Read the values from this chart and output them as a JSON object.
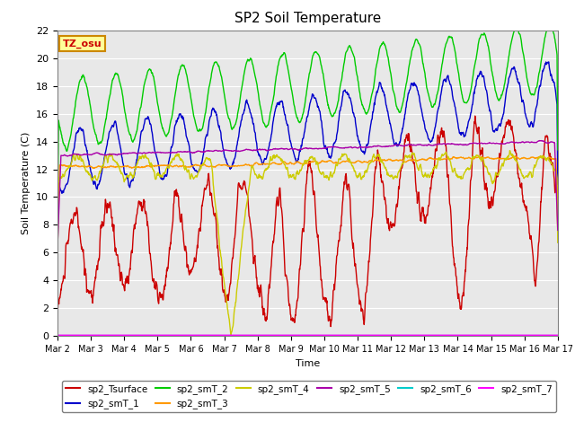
{
  "title": "SP2 Soil Temperature",
  "xlabel": "Time",
  "ylabel": "Soil Temperature (C)",
  "ylim": [
    0,
    22
  ],
  "annotation_text": "TZ_osu",
  "annotation_color": "#cc0000",
  "annotation_bg": "#ffff99",
  "annotation_border": "#cc8800",
  "plot_bg": "#e8e8e8",
  "grid_color": "white",
  "colors": {
    "sp2_Tsurface": "#cc0000",
    "sp2_smT_1": "#0000cc",
    "sp2_smT_2": "#00cc00",
    "sp2_smT_3": "#ff9900",
    "sp2_smT_4": "#cccc00",
    "sp2_smT_5": "#aa00aa",
    "sp2_smT_6": "#00cccc",
    "sp2_smT_7": "#ff00ff"
  },
  "x_tick_labels": [
    "Mar 2",
    "Mar 3",
    "Mar 4",
    "Mar 5",
    "Mar 6",
    "Mar 7",
    "Mar 8",
    "Mar 9",
    "Mar 10",
    "Mar 11",
    "Mar 12",
    "Mar 13",
    "Mar 14",
    "Mar 15",
    "Mar 16",
    "Mar 17"
  ],
  "x_tick_positions": [
    0,
    24,
    48,
    72,
    96,
    120,
    144,
    168,
    192,
    216,
    240,
    264,
    288,
    312,
    336,
    360
  ]
}
